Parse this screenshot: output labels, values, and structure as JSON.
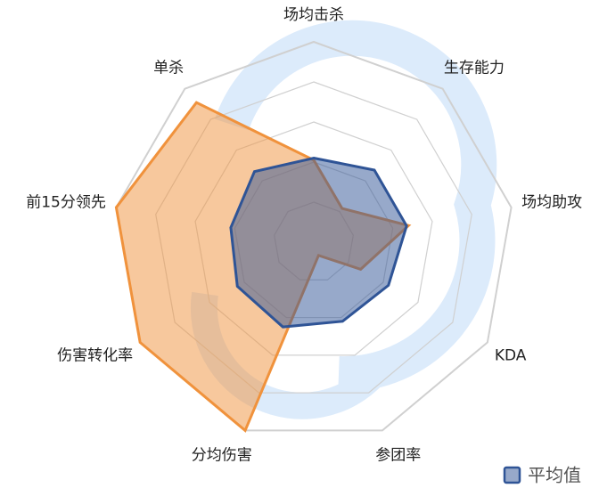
{
  "chart_data": {
    "type": "radar",
    "categories": [
      "场均击杀",
      "生存能力",
      "场均助攻",
      "KDA",
      "参团率",
      "分均伤害",
      "伤害转化率",
      "前15分领先",
      "单杀"
    ],
    "ylim": [
      0,
      100
    ],
    "yticks": [
      0,
      20,
      40,
      60,
      80,
      100
    ],
    "series": [
      {
        "color": "#f0923c",
        "values": [
          41,
          22,
          48,
          27,
          7,
          100,
          100,
          100,
          91
        ]
      },
      {
        "name": "平均值",
        "color": "#2f5496",
        "values": [
          42,
          47,
          47,
          43,
          42,
          45,
          44,
          42,
          46
        ]
      }
    ]
  }
}
